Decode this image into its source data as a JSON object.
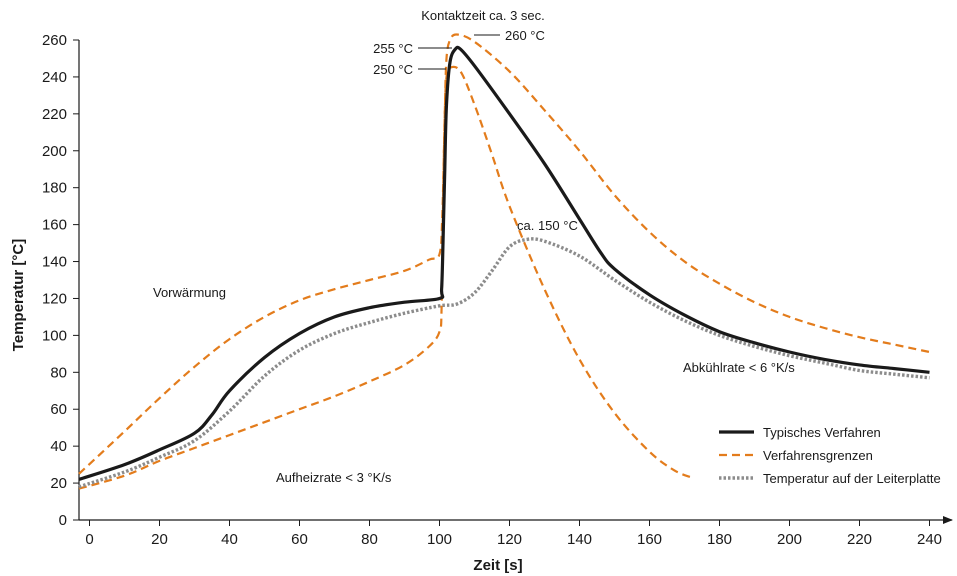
{
  "chart_data": {
    "type": "line",
    "xlabel": "Zeit [s]",
    "ylabel": "Temperatur [°C]",
    "xlim": [
      -3,
      243
    ],
    "ylim": [
      0,
      260
    ],
    "xticks": [
      0,
      20,
      40,
      60,
      80,
      100,
      120,
      140,
      160,
      180,
      200,
      220,
      240
    ],
    "yticks": [
      0,
      20,
      40,
      60,
      80,
      100,
      120,
      140,
      160,
      180,
      200,
      220,
      240,
      260
    ],
    "grid": false,
    "legend_position": "bottom-right",
    "series": [
      {
        "name": "Typisches Verfahren",
        "color": "#1a1a1a",
        "style": "solid",
        "points": [
          [
            -3,
            22
          ],
          [
            10,
            30
          ],
          [
            20,
            38
          ],
          [
            30,
            47
          ],
          [
            35,
            57
          ],
          [
            40,
            70
          ],
          [
            50,
            88
          ],
          [
            60,
            101
          ],
          [
            70,
            110
          ],
          [
            80,
            115
          ],
          [
            90,
            118
          ],
          [
            100,
            120
          ],
          [
            100.6,
            125
          ],
          [
            101,
            150
          ],
          [
            101.5,
            190
          ],
          [
            102,
            225
          ],
          [
            103,
            248
          ],
          [
            104.5,
            255
          ],
          [
            106,
            255
          ],
          [
            110,
            246
          ],
          [
            120,
            220
          ],
          [
            130,
            193
          ],
          [
            140,
            163
          ],
          [
            146,
            145
          ],
          [
            150,
            136
          ],
          [
            160,
            122
          ],
          [
            170,
            111
          ],
          [
            180,
            102
          ],
          [
            190,
            96
          ],
          [
            200,
            91
          ],
          [
            210,
            87
          ],
          [
            220,
            84
          ],
          [
            230,
            82
          ],
          [
            240,
            80
          ]
        ]
      },
      {
        "name": "Verfahrensgrenzen",
        "color": "#e37c1c",
        "style": "dashed",
        "points_upper": [
          [
            -3,
            25
          ],
          [
            10,
            48
          ],
          [
            20,
            66
          ],
          [
            30,
            83
          ],
          [
            40,
            98
          ],
          [
            50,
            110
          ],
          [
            60,
            119
          ],
          [
            70,
            125
          ],
          [
            80,
            130
          ],
          [
            90,
            135
          ],
          [
            97,
            141
          ],
          [
            100,
            144
          ],
          [
            100.8,
            165
          ],
          [
            101.5,
            220
          ],
          [
            102,
            250
          ],
          [
            103,
            260
          ],
          [
            105,
            263
          ],
          [
            110,
            259
          ],
          [
            120,
            243
          ],
          [
            130,
            222
          ],
          [
            140,
            200
          ],
          [
            150,
            176
          ],
          [
            160,
            156
          ],
          [
            170,
            140
          ],
          [
            180,
            128
          ],
          [
            190,
            118
          ],
          [
            200,
            110
          ],
          [
            210,
            104
          ],
          [
            220,
            99
          ],
          [
            230,
            95
          ],
          [
            240,
            91
          ]
        ],
        "points_lower": [
          [
            -3,
            17
          ],
          [
            10,
            24
          ],
          [
            20,
            32
          ],
          [
            30,
            39
          ],
          [
            40,
            46
          ],
          [
            50,
            53
          ],
          [
            60,
            60
          ],
          [
            70,
            67
          ],
          [
            80,
            75
          ],
          [
            90,
            84
          ],
          [
            97,
            94
          ],
          [
            100,
            102
          ],
          [
            100.6,
            115
          ],
          [
            101,
            170
          ],
          [
            101.5,
            220
          ],
          [
            102,
            240
          ],
          [
            103,
            245
          ],
          [
            106,
            243
          ],
          [
            110,
            225
          ],
          [
            115,
            198
          ],
          [
            120,
            170
          ],
          [
            130,
            125
          ],
          [
            140,
            87
          ],
          [
            150,
            58
          ],
          [
            160,
            37
          ],
          [
            167,
            27
          ],
          [
            172,
            23
          ]
        ]
      },
      {
        "name": "Temperatur auf der Leiterplatte",
        "color": "#8c8c8c",
        "style": "dotted",
        "points": [
          [
            -3,
            18
          ],
          [
            10,
            26
          ],
          [
            20,
            34
          ],
          [
            30,
            43
          ],
          [
            40,
            59
          ],
          [
            50,
            78
          ],
          [
            60,
            92
          ],
          [
            70,
            101
          ],
          [
            80,
            107
          ],
          [
            90,
            112
          ],
          [
            100,
            116
          ],
          [
            105,
            117
          ],
          [
            110,
            123
          ],
          [
            115,
            135
          ],
          [
            120,
            148
          ],
          [
            125,
            152
          ],
          [
            130,
            151
          ],
          [
            140,
            143
          ],
          [
            150,
            130
          ],
          [
            160,
            118
          ],
          [
            170,
            108
          ],
          [
            180,
            100
          ],
          [
            190,
            94
          ],
          [
            200,
            89
          ],
          [
            210,
            85
          ],
          [
            220,
            81
          ],
          [
            230,
            79
          ],
          [
            240,
            77
          ]
        ]
      }
    ],
    "annotations": {
      "contact_time": "Kontaktzeit ca. 3 sec.",
      "t255": "255 °C",
      "t260": "260 °C",
      "t250": "250 °C",
      "t150": "ca. 150 °C",
      "preheat": "Vorwärmung",
      "heat_rate": "Aufheizrate < 3 °K/s",
      "cool_rate": "Abkühlrate < 6 °K/s"
    }
  }
}
